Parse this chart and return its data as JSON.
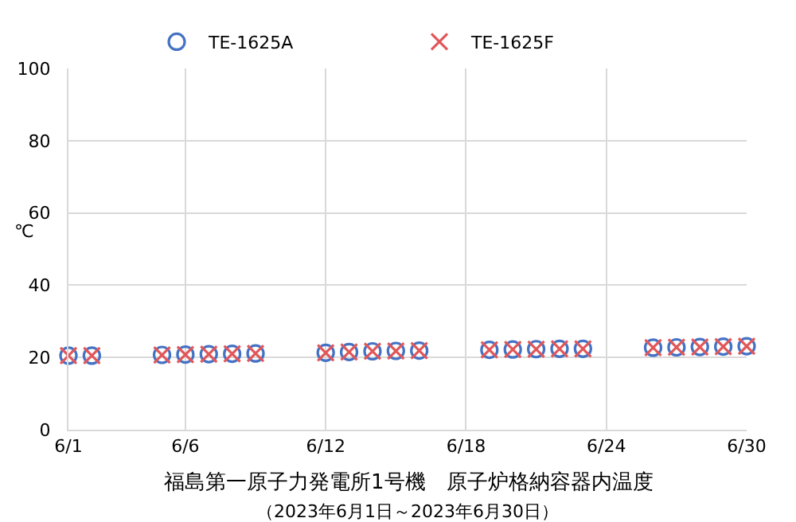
{
  "chart_data": {
    "type": "scatter",
    "title": "福島第一原子力発電所1号機　原子炉格納容器内温度",
    "subtitle": "（2023年6月1日～2023年6月30日）",
    "ylabel": "℃",
    "x": [
      "2023-06-01",
      "2023-06-02",
      "2023-06-05",
      "2023-06-06",
      "2023-06-07",
      "2023-06-08",
      "2023-06-09",
      "2023-06-12",
      "2023-06-13",
      "2023-06-14",
      "2023-06-15",
      "2023-06-16",
      "2023-06-19",
      "2023-06-20",
      "2023-06-21",
      "2023-06-22",
      "2023-06-23",
      "2023-06-26",
      "2023-06-27",
      "2023-06-28",
      "2023-06-29",
      "2023-06-30"
    ],
    "series": [
      {
        "name": "TE-1625A",
        "color": "#4472c4",
        "marker": "circle",
        "values": [
          20.5,
          20.5,
          20.7,
          20.8,
          20.9,
          21.0,
          21.1,
          21.3,
          21.5,
          21.7,
          21.8,
          21.9,
          22.1,
          22.2,
          22.3,
          22.4,
          22.4,
          22.7,
          22.8,
          22.9,
          23.0,
          23.1
        ]
      },
      {
        "name": "TE-1625F",
        "color": "#e15759",
        "marker": "cross",
        "values": [
          20.5,
          20.5,
          20.7,
          20.8,
          20.9,
          21.0,
          21.1,
          21.3,
          21.5,
          21.7,
          21.8,
          21.9,
          22.1,
          22.2,
          22.3,
          22.4,
          22.4,
          22.7,
          22.8,
          22.9,
          23.0,
          23.1
        ]
      }
    ],
    "xlim": [
      "2023-06-01",
      "2023-06-30"
    ],
    "xticks": [
      {
        "value": "2023-06-01",
        "label": "6/1"
      },
      {
        "value": "2023-06-06",
        "label": "6/6"
      },
      {
        "value": "2023-06-12",
        "label": "6/12"
      },
      {
        "value": "2023-06-18",
        "label": "6/18"
      },
      {
        "value": "2023-06-24",
        "label": "6/24"
      },
      {
        "value": "2023-06-30",
        "label": "6/30"
      }
    ],
    "ylim": [
      0,
      100
    ],
    "yticks": [
      0,
      20,
      40,
      60,
      80,
      100
    ],
    "grid": true,
    "legend": "top"
  }
}
